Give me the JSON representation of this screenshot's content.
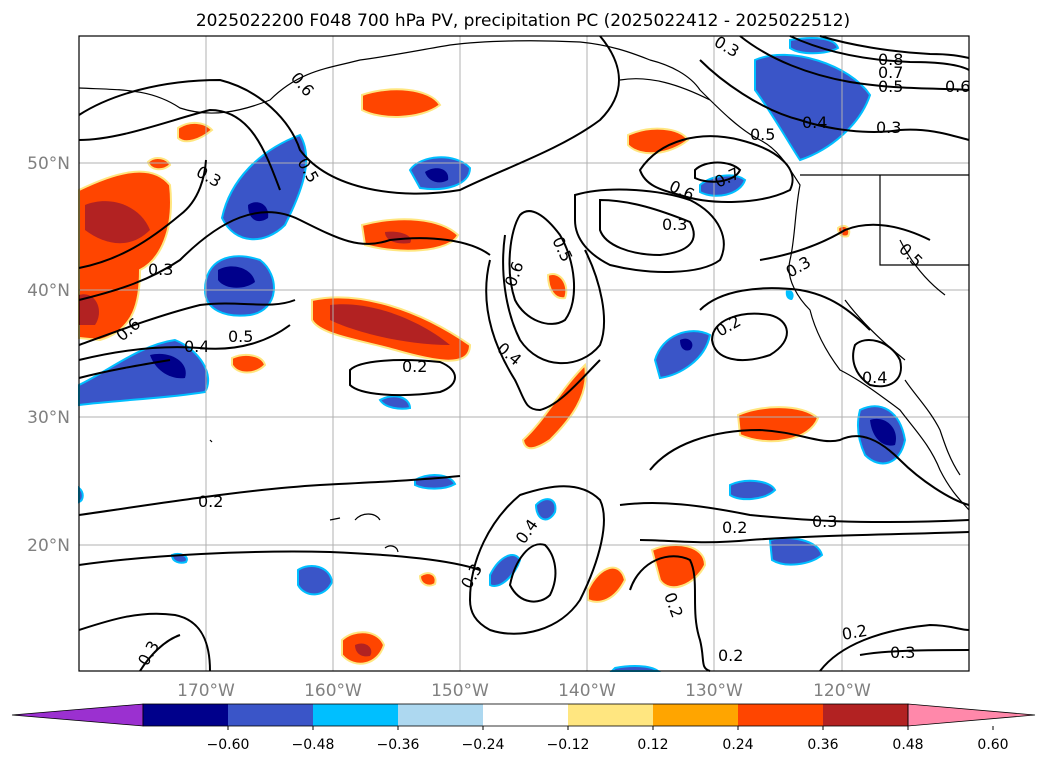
{
  "title": "2025022200 F048 700 hPa PV, precipitation PC (2025022412 - 2025022512)",
  "lat_labels": [
    "50°N",
    "40°N",
    "30°N",
    "20°N"
  ],
  "lon_labels": [
    "170°W",
    "160°W",
    "150°W",
    "140°W",
    "130°W",
    "120°W"
  ],
  "colorbar": {
    "ticks": [
      "−0.60",
      "−0.48",
      "−0.36",
      "−0.24",
      "−0.12",
      "0.12",
      "0.24",
      "0.36",
      "0.48",
      "0.60"
    ],
    "colors": [
      "#9b30d0",
      "#00008b",
      "#3a55c8",
      "#00bfff",
      "#add8f0",
      "#ffffff",
      "#ffe680",
      "#ffa500",
      "#ff4500",
      "#b22222",
      "#ff88aa"
    ]
  },
  "contour_labels": [
    "0.8",
    "0.7",
    "0.6",
    "0.5",
    "0.4",
    "0.3",
    "0.2"
  ]
}
